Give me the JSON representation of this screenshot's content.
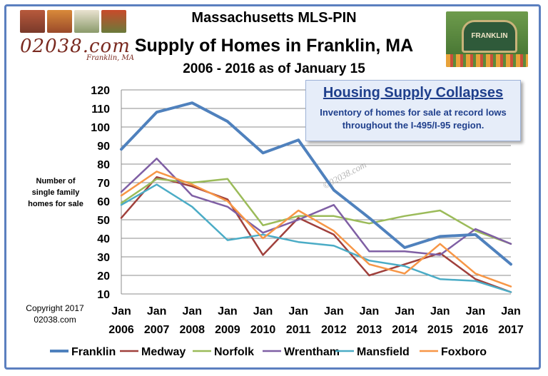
{
  "header": {
    "line1": "Massachusetts MLS-PIN",
    "line2": "Supply of Homes in Franklin, MA",
    "line3": "2006 - 2016 as of January 15"
  },
  "logo": {
    "text": "02038.com",
    "sub": "Franklin, MA"
  },
  "sign": {
    "text": "FRANKLIN"
  },
  "callout": {
    "title": "Housing Supply Collapses",
    "body": "Inventory of homes for sale at record lows throughout the I-495/I-95 region."
  },
  "copyright": {
    "line1": "Copyright 2017",
    "line2": "02038.com"
  },
  "chart_data": {
    "type": "line",
    "ylabel": "Number of single family homes for sale",
    "ylim": [
      10,
      120
    ],
    "yticks": [
      10,
      20,
      30,
      40,
      50,
      60,
      70,
      80,
      90,
      100,
      110,
      120
    ],
    "categories": [
      "Jan 2006",
      "Jan 2007",
      "Jan 2008",
      "Jan 2009",
      "Jan 2010",
      "Jan 2011",
      "Jan 2012",
      "Jan 2013",
      "Jan 2014",
      "Jan 2015",
      "Jan 2016",
      "Jan 2017"
    ],
    "grid": "horizontal",
    "legend_position": "bottom",
    "watermark": "©02038.com",
    "series": [
      {
        "name": "Franklin",
        "color": "#4f81bd",
        "width": 4,
        "values": [
          88,
          108,
          113,
          103,
          86,
          93,
          66,
          51,
          35,
          41,
          42,
          26
        ]
      },
      {
        "name": "Medway",
        "color": "#a0403c",
        "width": 2.5,
        "values": [
          51,
          73,
          68,
          61,
          31,
          51,
          42,
          20,
          26,
          32,
          18,
          11
        ]
      },
      {
        "name": "Norfolk",
        "color": "#9bbb59",
        "width": 2.5,
        "values": [
          59,
          72,
          70,
          72,
          47,
          52,
          52,
          48,
          52,
          55,
          44,
          37
        ]
      },
      {
        "name": "Wrentham",
        "color": "#7f5fa4",
        "width": 2.5,
        "values": [
          65,
          83,
          63,
          57,
          43,
          50,
          58,
          33,
          33,
          31,
          45,
          37
        ]
      },
      {
        "name": "Mansfield",
        "color": "#4bacc6",
        "width": 2.5,
        "values": [
          58,
          69,
          57,
          39,
          42,
          38,
          36,
          28,
          25,
          18,
          17,
          11
        ]
      },
      {
        "name": "Foxboro",
        "color": "#f79646",
        "width": 2.5,
        "values": [
          63,
          76,
          69,
          60,
          40,
          55,
          44,
          26,
          21,
          37,
          21,
          14
        ]
      }
    ]
  }
}
